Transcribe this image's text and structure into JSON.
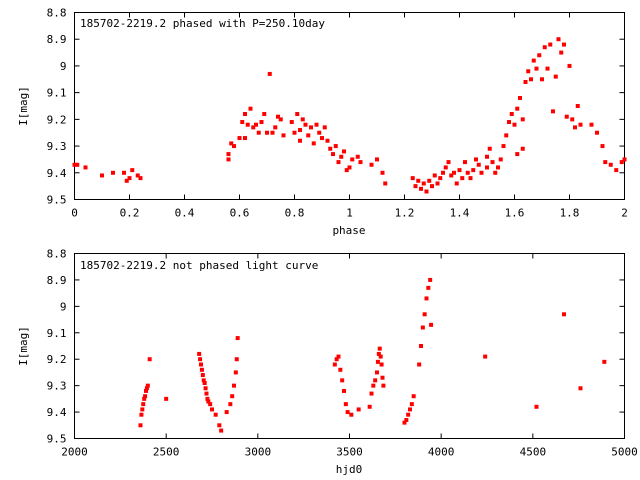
{
  "chart_data": [
    {
      "type": "scatter",
      "title": "185702-2219.2 phased with P=250.10day",
      "xlabel": "phase",
      "ylabel": "I[mag]",
      "xlim": [
        0,
        2
      ],
      "ylim": [
        9.5,
        8.8
      ],
      "y_inverted": true,
      "x_ticks": [
        "0",
        "0.2",
        "0.4",
        "0.6",
        "0.8",
        "1",
        "1.2",
        "1.4",
        "1.6",
        "1.8",
        "2"
      ],
      "y_ticks": [
        "8.8",
        "8.9",
        "9",
        "9.1",
        "9.2",
        "9.3",
        "9.4",
        "9.5"
      ],
      "marker_color": "#ff0000",
      "points": [
        [
          0.0,
          9.37
        ],
        [
          0.01,
          9.37
        ],
        [
          0.04,
          9.38
        ],
        [
          0.1,
          9.41
        ],
        [
          0.14,
          9.4
        ],
        [
          0.18,
          9.4
        ],
        [
          0.19,
          9.43
        ],
        [
          0.2,
          9.42
        ],
        [
          0.21,
          9.39
        ],
        [
          0.23,
          9.41
        ],
        [
          0.24,
          9.42
        ],
        [
          0.56,
          9.33
        ],
        [
          0.56,
          9.35
        ],
        [
          0.57,
          9.29
        ],
        [
          0.58,
          9.3
        ],
        [
          0.6,
          9.27
        ],
        [
          0.61,
          9.21
        ],
        [
          0.62,
          9.18
        ],
        [
          0.62,
          9.27
        ],
        [
          0.63,
          9.22
        ],
        [
          0.64,
          9.16
        ],
        [
          0.65,
          9.23
        ],
        [
          0.66,
          9.22
        ],
        [
          0.67,
          9.25
        ],
        [
          0.68,
          9.21
        ],
        [
          0.69,
          9.18
        ],
        [
          0.7,
          9.25
        ],
        [
          0.71,
          9.03
        ],
        [
          0.72,
          9.25
        ],
        [
          0.73,
          9.23
        ],
        [
          0.74,
          9.19
        ],
        [
          0.75,
          9.2
        ],
        [
          0.76,
          9.26
        ],
        [
          0.79,
          9.21
        ],
        [
          0.8,
          9.25
        ],
        [
          0.81,
          9.18
        ],
        [
          0.82,
          9.24
        ],
        [
          0.82,
          9.28
        ],
        [
          0.83,
          9.2
        ],
        [
          0.84,
          9.22
        ],
        [
          0.85,
          9.26
        ],
        [
          0.86,
          9.23
        ],
        [
          0.87,
          9.29
        ],
        [
          0.88,
          9.22
        ],
        [
          0.89,
          9.25
        ],
        [
          0.9,
          9.27
        ],
        [
          0.91,
          9.23
        ],
        [
          0.92,
          9.28
        ],
        [
          0.93,
          9.31
        ],
        [
          0.94,
          9.33
        ],
        [
          0.95,
          9.3
        ],
        [
          0.96,
          9.36
        ],
        [
          0.97,
          9.34
        ],
        [
          0.98,
          9.32
        ],
        [
          0.99,
          9.39
        ],
        [
          1.0,
          9.38
        ],
        [
          1.01,
          9.35
        ],
        [
          1.03,
          9.34
        ],
        [
          1.04,
          9.36
        ],
        [
          1.08,
          9.37
        ],
        [
          1.1,
          9.35
        ],
        [
          1.12,
          9.4
        ],
        [
          1.13,
          9.44
        ],
        [
          1.23,
          9.42
        ],
        [
          1.24,
          9.45
        ],
        [
          1.25,
          9.43
        ],
        [
          1.26,
          9.46
        ],
        [
          1.27,
          9.44
        ],
        [
          1.28,
          9.47
        ],
        [
          1.29,
          9.43
        ],
        [
          1.3,
          9.45
        ],
        [
          1.31,
          9.41
        ],
        [
          1.32,
          9.44
        ],
        [
          1.33,
          9.42
        ],
        [
          1.34,
          9.4
        ],
        [
          1.35,
          9.38
        ],
        [
          1.36,
          9.36
        ],
        [
          1.37,
          9.41
        ],
        [
          1.38,
          9.4
        ],
        [
          1.39,
          9.44
        ],
        [
          1.4,
          9.39
        ],
        [
          1.41,
          9.42
        ],
        [
          1.42,
          9.36
        ],
        [
          1.43,
          9.4
        ],
        [
          1.44,
          9.42
        ],
        [
          1.45,
          9.39
        ],
        [
          1.46,
          9.35
        ],
        [
          1.47,
          9.37
        ],
        [
          1.48,
          9.4
        ],
        [
          1.5,
          9.38
        ],
        [
          1.5,
          9.34
        ],
        [
          1.51,
          9.31
        ],
        [
          1.52,
          9.36
        ],
        [
          1.53,
          9.4
        ],
        [
          1.54,
          9.38
        ],
        [
          1.55,
          9.35
        ],
        [
          1.56,
          9.3
        ],
        [
          1.57,
          9.26
        ],
        [
          1.58,
          9.21
        ],
        [
          1.59,
          9.18
        ],
        [
          1.6,
          9.22
        ],
        [
          1.61,
          9.16
        ],
        [
          1.61,
          9.33
        ],
        [
          1.62,
          9.12
        ],
        [
          1.63,
          9.31
        ],
        [
          1.63,
          9.2
        ],
        [
          1.64,
          9.06
        ],
        [
          1.65,
          9.02
        ],
        [
          1.66,
          9.05
        ],
        [
          1.67,
          8.98
        ],
        [
          1.68,
          9.01
        ],
        [
          1.69,
          8.96
        ],
        [
          1.7,
          9.05
        ],
        [
          1.71,
          8.93
        ],
        [
          1.72,
          9.01
        ],
        [
          1.73,
          8.92
        ],
        [
          1.74,
          9.17
        ],
        [
          1.75,
          9.04
        ],
        [
          1.76,
          8.9
        ],
        [
          1.77,
          8.95
        ],
        [
          1.78,
          8.92
        ],
        [
          1.79,
          9.19
        ],
        [
          1.8,
          9.0
        ],
        [
          1.81,
          9.2
        ],
        [
          1.82,
          9.23
        ],
        [
          1.83,
          9.15
        ],
        [
          1.84,
          9.22
        ],
        [
          1.88,
          9.22
        ],
        [
          1.9,
          9.25
        ],
        [
          1.92,
          9.3
        ],
        [
          1.93,
          9.36
        ],
        [
          1.95,
          9.37
        ],
        [
          1.97,
          9.39
        ],
        [
          1.99,
          9.36
        ],
        [
          2.0,
          9.35
        ]
      ]
    },
    {
      "type": "scatter",
      "title": "185702-2219.2 not phased light curve",
      "xlabel": "hjd0",
      "ylabel": "I[mag]",
      "xlim": [
        2000,
        5000
      ],
      "ylim": [
        9.5,
        8.8
      ],
      "y_inverted": true,
      "x_ticks": [
        "2000",
        "2500",
        "3000",
        "3500",
        "4000",
        "4500",
        "5000"
      ],
      "y_ticks": [
        "8.8",
        "8.9",
        "9",
        "9.1",
        "9.2",
        "9.3",
        "9.4",
        "9.5"
      ],
      "marker_color": "#ff0000",
      "points": [
        [
          2360,
          9.45
        ],
        [
          2365,
          9.41
        ],
        [
          2370,
          9.39
        ],
        [
          2375,
          9.37
        ],
        [
          2380,
          9.35
        ],
        [
          2385,
          9.34
        ],
        [
          2390,
          9.32
        ],
        [
          2395,
          9.31
        ],
        [
          2400,
          9.3
        ],
        [
          2410,
          9.2
        ],
        [
          2500,
          9.35
        ],
        [
          2680,
          9.18
        ],
        [
          2685,
          9.2
        ],
        [
          2690,
          9.22
        ],
        [
          2695,
          9.24
        ],
        [
          2700,
          9.26
        ],
        [
          2705,
          9.28
        ],
        [
          2710,
          9.29
        ],
        [
          2715,
          9.31
        ],
        [
          2720,
          9.33
        ],
        [
          2725,
          9.35
        ],
        [
          2730,
          9.36
        ],
        [
          2740,
          9.37
        ],
        [
          2750,
          9.39
        ],
        [
          2770,
          9.41
        ],
        [
          2790,
          9.45
        ],
        [
          2800,
          9.47
        ],
        [
          2830,
          9.4
        ],
        [
          2850,
          9.37
        ],
        [
          2860,
          9.34
        ],
        [
          2870,
          9.3
        ],
        [
          2880,
          9.25
        ],
        [
          2885,
          9.2
        ],
        [
          2890,
          9.12
        ],
        [
          3420,
          9.22
        ],
        [
          3430,
          9.2
        ],
        [
          3440,
          9.19
        ],
        [
          3450,
          9.24
        ],
        [
          3460,
          9.28
        ],
        [
          3470,
          9.32
        ],
        [
          3480,
          9.37
        ],
        [
          3490,
          9.4
        ],
        [
          3510,
          9.41
        ],
        [
          3550,
          9.39
        ],
        [
          3610,
          9.38
        ],
        [
          3620,
          9.33
        ],
        [
          3630,
          9.3
        ],
        [
          3640,
          9.28
        ],
        [
          3650,
          9.25
        ],
        [
          3655,
          9.21
        ],
        [
          3660,
          9.18
        ],
        [
          3665,
          9.16
        ],
        [
          3670,
          9.19
        ],
        [
          3675,
          9.22
        ],
        [
          3680,
          9.27
        ],
        [
          3685,
          9.3
        ],
        [
          3800,
          9.44
        ],
        [
          3810,
          9.43
        ],
        [
          3820,
          9.41
        ],
        [
          3830,
          9.39
        ],
        [
          3840,
          9.37
        ],
        [
          3850,
          9.34
        ],
        [
          3880,
          9.22
        ],
        [
          3890,
          9.15
        ],
        [
          3900,
          9.08
        ],
        [
          3910,
          9.03
        ],
        [
          3920,
          8.97
        ],
        [
          3930,
          8.93
        ],
        [
          3940,
          8.9
        ],
        [
          3945,
          9.07
        ],
        [
          4240,
          9.19
        ],
        [
          4520,
          9.38
        ],
        [
          4670,
          9.03
        ],
        [
          4760,
          9.31
        ],
        [
          4890,
          9.21
        ]
      ]
    }
  ]
}
